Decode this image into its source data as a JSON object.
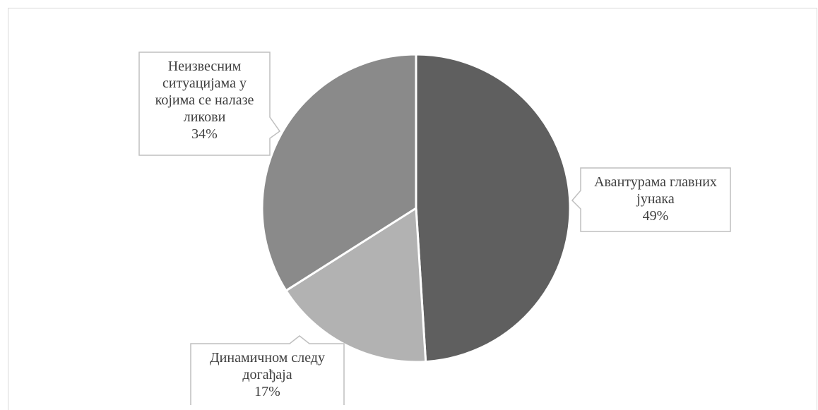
{
  "chart_data": {
    "type": "pie",
    "title": "",
    "slices": [
      {
        "label_lines": [
          "Авантурама главних",
          "јунака"
        ],
        "percent_label": "49%",
        "value": 49,
        "color": "#5f5f5f"
      },
      {
        "label_lines": [
          "Динамичном следу",
          "догађаја"
        ],
        "percent_label": "17%",
        "value": 17,
        "color": "#b2b2b2"
      },
      {
        "label_lines": [
          "Неизвесним",
          "ситуацијама у",
          "којима се налазе",
          "ликови"
        ],
        "percent_label": "34%",
        "value": 34,
        "color": "#8a8a8a"
      }
    ],
    "start_angle": "12 o'clock",
    "direction": "clockwise",
    "legend": "none",
    "label_style": "callouts"
  }
}
